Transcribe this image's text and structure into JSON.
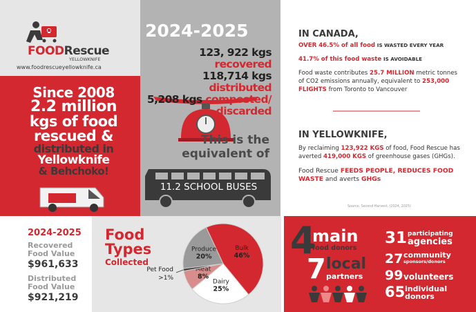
{
  "logo": {
    "name1": "FOOD",
    "name2": "Rescue",
    "sub": "YELLOWKNIFE",
    "url": "www.foodrescueyellowknife.ca"
  },
  "history": {
    "lines": [
      "Since 2008",
      "2.2 million",
      "kgs of food",
      "rescued &",
      "distributed in",
      "Yellowknife",
      "& Behchoko!"
    ]
  },
  "season": {
    "title": "2024-2025",
    "stats": [
      {
        "amount": "123, 922 kgs",
        "label": "recovered"
      },
      {
        "amount": "118,714 kgs",
        "label": "distributed"
      },
      {
        "amount": "5,208 kgs",
        "label": "composted/ discarded"
      }
    ],
    "equivalent": "This is the equivalent of",
    "buses": "11.2 SCHOOL BUSES"
  },
  "canada": {
    "title": "IN CANADA,",
    "fact1": {
      "highlight": "OVER 46.5% of all food",
      "rest": "IS WASTED EVERY YEAR"
    },
    "fact2": {
      "highlight": "41.7% of this food waste",
      "rest": "IS AVOIDABLE"
    },
    "fact3": [
      "Food waste contributes ",
      "25.7 MILLION",
      " metric tonnes of CO2 emissions annually, equivalent to ",
      "253,000 FLIGHTS",
      " from Toronto to Vancouver"
    ]
  },
  "yellowknife": {
    "title": "IN YELLOWKNIFE,",
    "fact1": [
      "By reclaiming ",
      "123,922 KGS",
      " of food, Food Rescue has averted ",
      "419,000 KGS",
      " of greenhouse gases (GHGs)."
    ],
    "fact2": [
      "Food Rescue ",
      "FEEDS PEOPLE, REDUCES FOOD WASTE",
      " and averts ",
      "GHGs"
    ],
    "source": "Source: Second Harvest, (2024, 2025)"
  },
  "values": {
    "title": "2024-2025",
    "items": [
      {
        "label": "Recovered Food Value",
        "amount": "$961,633"
      },
      {
        "label": "Distributed Food Value",
        "amount": "$921,219"
      }
    ]
  },
  "chart_data": {
    "type": "pie",
    "title": [
      "Food",
      "Types",
      "Collected"
    ],
    "categories": [
      "Bulk",
      "Dairy",
      "Meat",
      "Pet Food",
      "Produce"
    ],
    "values": [
      46,
      25,
      8,
      1,
      20
    ],
    "value_labels": [
      "46%",
      "25%",
      "8%",
      ">1%",
      "20%"
    ],
    "colors": [
      "#d3282f",
      "#ffffff",
      "#d98c8c",
      "#3a3a3a",
      "#9a9a9a"
    ]
  },
  "donors": [
    {
      "number": "4",
      "line1": "main",
      "line2": "food donors"
    },
    {
      "number": "7",
      "line1": "local",
      "line2": "partners"
    },
    {
      "number": "31",
      "line1": "participating",
      "line2": "agencies"
    },
    {
      "number": "27",
      "line1": "community",
      "line2": "sponsors/donors"
    },
    {
      "number": "99",
      "line1": "volunteers"
    },
    {
      "number": "65",
      "line1": "individual",
      "line2": "donors"
    }
  ]
}
